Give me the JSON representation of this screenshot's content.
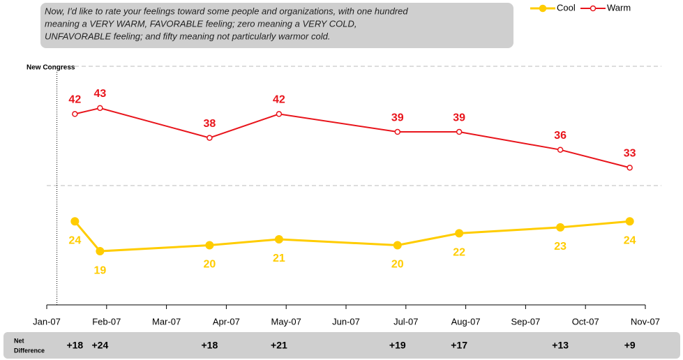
{
  "chart_data": {
    "type": "line",
    "question": [
      "Now, I'd like to rate your feelings toward some people and organizations, with one hundred",
      "meaning a VERY WARM, FAVORABLE feeling; zero meaning a VERY COLD,",
      "UNFAVORABLE feeling; and fifty meaning not particularly warmor cold."
    ],
    "x": [
      0.47,
      0.89,
      2.72,
      3.88,
      5.86,
      6.89,
      8.58,
      9.74
    ],
    "series": [
      {
        "name": "Cool",
        "color": "#FFCC00",
        "values": [
          24,
          19,
          20,
          21,
          20,
          22,
          23,
          24
        ]
      },
      {
        "name": "Warm",
        "color": "#E8141B",
        "values": [
          42,
          43,
          38,
          42,
          39,
          39,
          36,
          33
        ]
      }
    ],
    "xlim": [
      0,
      10
    ],
    "xticks": [
      {
        "value": 0,
        "label": "Jan-07"
      },
      {
        "value": 1,
        "label": "Feb-07"
      },
      {
        "value": 2,
        "label": "Mar-07"
      },
      {
        "value": 3,
        "label": "Apr-07"
      },
      {
        "value": 4,
        "label": "May-07"
      },
      {
        "value": 5,
        "label": "Jun-07"
      },
      {
        "value": 6,
        "label": "Jul-07"
      },
      {
        "value": 7,
        "label": "Aug-07"
      },
      {
        "value": 8,
        "label": "Sep-07"
      },
      {
        "value": 9,
        "label": "Oct-07"
      },
      {
        "value": 10,
        "label": "Nov-07"
      }
    ],
    "ylim": [
      10,
      50
    ],
    "gridlines": [
      30,
      50
    ],
    "annotation": {
      "text": "New Congress",
      "x": 0.17
    },
    "net_difference": {
      "label": [
        "Net",
        "Difference"
      ],
      "values": [
        18,
        24,
        18,
        21,
        19,
        17,
        13,
        9
      ],
      "value_labels": [
        "+18",
        "+24",
        "+18",
        "+21",
        "+19",
        "+17",
        "+13",
        "+9"
      ]
    },
    "legend": "top-right"
  }
}
